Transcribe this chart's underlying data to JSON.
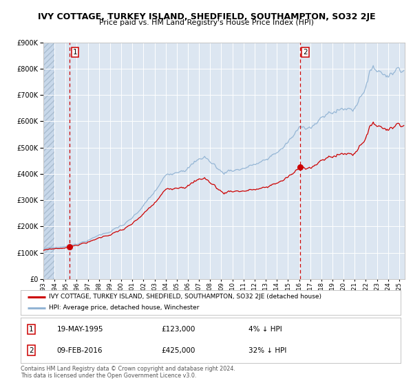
{
  "title": "IVY COTTAGE, TURKEY ISLAND, SHEDFIELD, SOUTHAMPTON, SO32 2JE",
  "subtitle": "Price paid vs. HM Land Registry's House Price Index (HPI)",
  "property_label": "IVY COTTAGE, TURKEY ISLAND, SHEDFIELD, SOUTHAMPTON, SO32 2JE (detached house)",
  "hpi_label": "HPI: Average price, detached house, Winchester",
  "sale1_date": "19-MAY-1995",
  "sale1_price": 123000,
  "sale1_pct": "4% ↓ HPI",
  "sale1_year": 1995.38,
  "sale2_date": "09-FEB-2016",
  "sale2_price": 425000,
  "sale2_pct": "32% ↓ HPI",
  "sale2_year": 2016.11,
  "ylim": [
    0,
    900000
  ],
  "xlim_start": 1993.0,
  "xlim_end": 2025.5,
  "plot_bg_color": "#dce6f1",
  "grid_color": "#ffffff",
  "line_color_property": "#cc0000",
  "line_color_hpi": "#92b4d4",
  "marker_color": "#cc0000",
  "footer_text": "Contains HM Land Registry data © Crown copyright and database right 2024.\nThis data is licensed under the Open Government Licence v3.0.",
  "copyright_color": "#555555"
}
